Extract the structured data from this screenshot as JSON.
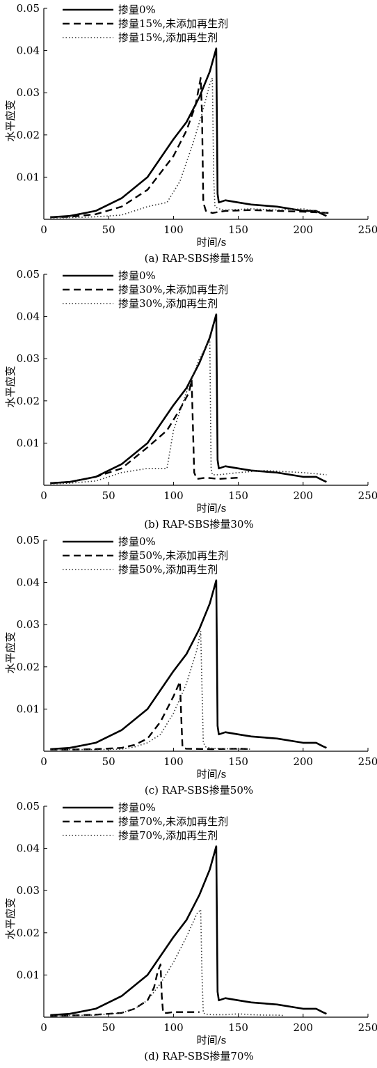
{
  "chart_data": [
    {
      "type": "line",
      "caption": "(a) RAP-SBS掺量15%",
      "xlabel": "时间/s",
      "ylabel": "水平应变",
      "xlim": [
        0,
        250
      ],
      "ylim": [
        0,
        0.05
      ],
      "xticks": [
        0,
        50,
        100,
        150,
        200,
        250
      ],
      "yticks": [
        0.01,
        0.02,
        0.03,
        0.04,
        0.05
      ],
      "xtick_labels": [
        "0",
        "50",
        "100",
        "150",
        "200",
        "250"
      ],
      "ytick_labels": [
        "0.01",
        "0.02",
        "0.03",
        "0.04",
        "0.05"
      ],
      "grid": false,
      "legend_position": "top-left",
      "series": [
        {
          "name": "掺量0%",
          "style": "solid",
          "x": [
            5,
            20,
            40,
            60,
            80,
            100,
            110,
            120,
            128,
            133,
            134,
            135,
            140,
            150,
            160,
            180,
            200,
            210,
            215,
            218
          ],
          "y": [
            0.0005,
            0.0008,
            0.002,
            0.005,
            0.01,
            0.019,
            0.023,
            0.029,
            0.035,
            0.0405,
            0.006,
            0.004,
            0.0045,
            0.004,
            0.0035,
            0.003,
            0.002,
            0.002,
            0.0012,
            0.0008
          ]
        },
        {
          "name": "掺量15%,未添加再生剂",
          "style": "dashed",
          "x": [
            5,
            20,
            40,
            60,
            80,
            100,
            110,
            117,
            121,
            122,
            123,
            125,
            130,
            140,
            160,
            180,
            200,
            220
          ],
          "y": [
            0.0005,
            0.0006,
            0.0012,
            0.003,
            0.007,
            0.015,
            0.021,
            0.027,
            0.0335,
            0.025,
            0.004,
            0.002,
            0.0015,
            0.002,
            0.0022,
            0.002,
            0.0018,
            0.0015
          ]
        },
        {
          "name": "掺量15%,添加再生剂",
          "style": "dotted",
          "x": [
            5,
            20,
            40,
            60,
            80,
            95,
            105,
            115,
            122,
            128,
            130,
            131,
            132,
            135,
            140,
            160,
            180,
            200,
            218
          ],
          "y": [
            0.0003,
            0.0004,
            0.0006,
            0.001,
            0.003,
            0.004,
            0.009,
            0.018,
            0.025,
            0.032,
            0.0335,
            0.01,
            0.003,
            0.0025,
            0.0022,
            0.0025,
            0.0022,
            0.0025,
            0.0015
          ]
        }
      ]
    },
    {
      "type": "line",
      "caption": "(b) RAP-SBS掺量30%",
      "xlabel": "时间/s",
      "ylabel": "水平应变",
      "xlim": [
        0,
        250
      ],
      "ylim": [
        0,
        0.05
      ],
      "xticks": [
        0,
        50,
        100,
        150,
        200,
        250
      ],
      "yticks": [
        0.01,
        0.02,
        0.03,
        0.04,
        0.05
      ],
      "xtick_labels": [
        "0",
        "50",
        "100",
        "150",
        "200",
        "250"
      ],
      "ytick_labels": [
        "0.01",
        "0.02",
        "0.03",
        "0.04",
        "0.05"
      ],
      "grid": false,
      "legend_position": "top-left",
      "series": [
        {
          "name": "掺量0%",
          "style": "solid",
          "x": [
            5,
            20,
            40,
            60,
            80,
            100,
            110,
            120,
            128,
            133,
            134,
            135,
            140,
            150,
            160,
            180,
            200,
            210,
            215,
            218
          ],
          "y": [
            0.0005,
            0.0008,
            0.002,
            0.005,
            0.01,
            0.019,
            0.023,
            0.029,
            0.035,
            0.0405,
            0.006,
            0.004,
            0.0045,
            0.004,
            0.0035,
            0.003,
            0.002,
            0.002,
            0.0012,
            0.0008
          ]
        },
        {
          "name": "掺量30%,未添加再生剂",
          "style": "dashed",
          "x": [
            5,
            20,
            40,
            60,
            80,
            95,
            105,
            112,
            114,
            116,
            118,
            125,
            135,
            150
          ],
          "y": [
            0.0005,
            0.0008,
            0.002,
            0.004,
            0.009,
            0.013,
            0.018,
            0.022,
            0.025,
            0.003,
            0.0015,
            0.0018,
            0.0015,
            0.0018
          ]
        },
        {
          "name": "掺量30%,添加再生剂",
          "style": "dotted",
          "x": [
            5,
            20,
            40,
            60,
            80,
            95,
            100,
            110,
            120,
            128,
            129,
            130,
            135,
            150,
            170,
            200,
            218
          ],
          "y": [
            0.0003,
            0.0005,
            0.001,
            0.003,
            0.004,
            0.004,
            0.013,
            0.022,
            0.03,
            0.0345,
            0.004,
            0.0025,
            0.0025,
            0.003,
            0.0035,
            0.003,
            0.0025
          ]
        }
      ]
    },
    {
      "type": "line",
      "caption": "(c) RAP-SBS掺量50%",
      "xlabel": "时间/s",
      "ylabel": "水平应变",
      "xlim": [
        0,
        250
      ],
      "ylim": [
        0,
        0.05
      ],
      "xticks": [
        0,
        50,
        100,
        150,
        200,
        250
      ],
      "yticks": [
        0.01,
        0.02,
        0.03,
        0.04,
        0.05
      ],
      "xtick_labels": [
        "0",
        "50",
        "100",
        "150",
        "200",
        "250"
      ],
      "ytick_labels": [
        "0.01",
        "0.02",
        "0.03",
        "0.04",
        "0.05"
      ],
      "grid": false,
      "legend_position": "top-left",
      "series": [
        {
          "name": "掺量0%",
          "style": "solid",
          "x": [
            5,
            20,
            40,
            60,
            80,
            100,
            110,
            120,
            128,
            133,
            134,
            135,
            140,
            150,
            160,
            180,
            200,
            210,
            215,
            218
          ],
          "y": [
            0.0005,
            0.0008,
            0.002,
            0.005,
            0.01,
            0.019,
            0.023,
            0.029,
            0.035,
            0.0405,
            0.006,
            0.004,
            0.0045,
            0.004,
            0.0035,
            0.003,
            0.002,
            0.002,
            0.0012,
            0.0008
          ]
        },
        {
          "name": "掺量50%,未添加再生剂",
          "style": "dashed",
          "x": [
            5,
            20,
            40,
            60,
            70,
            80,
            90,
            100,
            105,
            106,
            107,
            110,
            130,
            150,
            160
          ],
          "y": [
            0.0004,
            0.0004,
            0.0005,
            0.0008,
            0.0015,
            0.003,
            0.007,
            0.013,
            0.0165,
            0.008,
            0.0008,
            0.0006,
            0.0005,
            0.0006,
            0.0005
          ]
        },
        {
          "name": "掺量50%,添加再生剂",
          "style": "dotted",
          "x": [
            5,
            20,
            40,
            60,
            70,
            80,
            90,
            100,
            110,
            118,
            121,
            122,
            123,
            125,
            130,
            140,
            150,
            160
          ],
          "y": [
            0.0004,
            0.0004,
            0.0004,
            0.0005,
            0.001,
            0.002,
            0.004,
            0.009,
            0.016,
            0.024,
            0.0285,
            0.015,
            0.002,
            0.001,
            0.0007,
            0.0006,
            0.0005,
            0.0005
          ]
        }
      ]
    },
    {
      "type": "line",
      "caption": "(d) RAP-SBS掺量70%",
      "xlabel": "时间/s",
      "ylabel": "水平应变",
      "xlim": [
        0,
        250
      ],
      "ylim": [
        0,
        0.05
      ],
      "xticks": [
        0,
        50,
        100,
        150,
        200,
        250
      ],
      "yticks": [
        0.01,
        0.02,
        0.03,
        0.04,
        0.05
      ],
      "xtick_labels": [
        "0",
        "50",
        "100",
        "150",
        "200",
        "250"
      ],
      "ytick_labels": [
        "0.01",
        "0.02",
        "0.03",
        "0.04",
        "0.05"
      ],
      "grid": false,
      "legend_position": "top-left",
      "series": [
        {
          "name": "掺量0%",
          "style": "solid",
          "x": [
            5,
            20,
            40,
            60,
            80,
            100,
            110,
            120,
            128,
            133,
            134,
            135,
            140,
            150,
            160,
            180,
            200,
            210,
            215,
            218
          ],
          "y": [
            0.0005,
            0.0008,
            0.002,
            0.005,
            0.01,
            0.019,
            0.023,
            0.029,
            0.035,
            0.0405,
            0.006,
            0.004,
            0.0045,
            0.004,
            0.0035,
            0.003,
            0.002,
            0.002,
            0.0012,
            0.0008
          ]
        },
        {
          "name": "掺量70%,未添加再生剂",
          "style": "dashed",
          "x": [
            5,
            20,
            40,
            60,
            70,
            80,
            85,
            88,
            90,
            91,
            92,
            95,
            100,
            110,
            120
          ],
          "y": [
            0.0003,
            0.0004,
            0.0006,
            0.001,
            0.002,
            0.004,
            0.007,
            0.011,
            0.0125,
            0.005,
            0.001,
            0.001,
            0.0012,
            0.0012,
            0.0012
          ]
        },
        {
          "name": "掺量70%,添加再生剂",
          "style": "dotted",
          "x": [
            5,
            20,
            40,
            60,
            70,
            80,
            90,
            100,
            110,
            118,
            121,
            122,
            123,
            125,
            130,
            140,
            150,
            160,
            170,
            180,
            185
          ],
          "y": [
            0.0003,
            0.0004,
            0.0005,
            0.001,
            0.002,
            0.004,
            0.008,
            0.013,
            0.019,
            0.0245,
            0.0255,
            0.01,
            0.001,
            0.0007,
            0.0006,
            0.0006,
            0.0008,
            0.0006,
            0.0005,
            0.0005,
            0.0004
          ]
        }
      ]
    }
  ]
}
